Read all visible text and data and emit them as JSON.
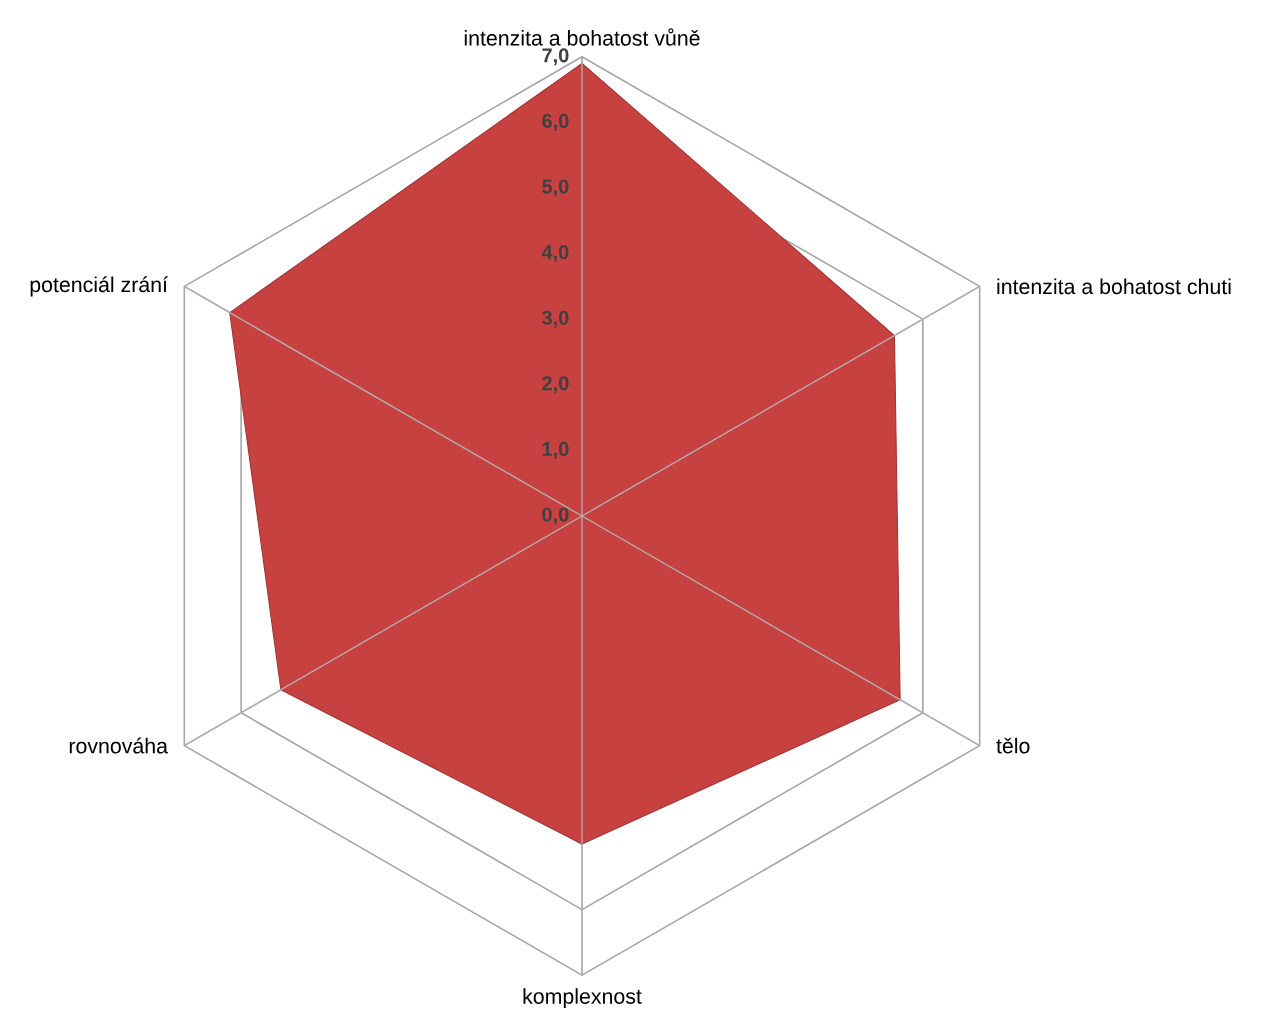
{
  "chart_data": {
    "type": "radar",
    "categories": [
      "intenzita a bohatost vůně",
      "intenzita a bohatost chuti",
      "tělo",
      "komplexnost",
      "rovnováha",
      "potenciál zrání"
    ],
    "series": [
      {
        "color": "#c84141",
        "values": [
          6.9,
          5.5,
          5.6,
          5.0,
          5.3,
          6.2
        ]
      }
    ],
    "ylim": [
      0,
      7
    ],
    "yticks": [
      {
        "value": 0,
        "label": "0,0"
      },
      {
        "value": 1,
        "label": "1,0"
      },
      {
        "value": 2,
        "label": "2,0"
      },
      {
        "value": 3,
        "label": "3,0"
      },
      {
        "value": 4,
        "label": "4,0"
      },
      {
        "value": 5,
        "label": "5,0"
      },
      {
        "value": 6,
        "label": "6,0"
      },
      {
        "value": 7,
        "label": "7,0"
      }
    ],
    "grid": true
  }
}
